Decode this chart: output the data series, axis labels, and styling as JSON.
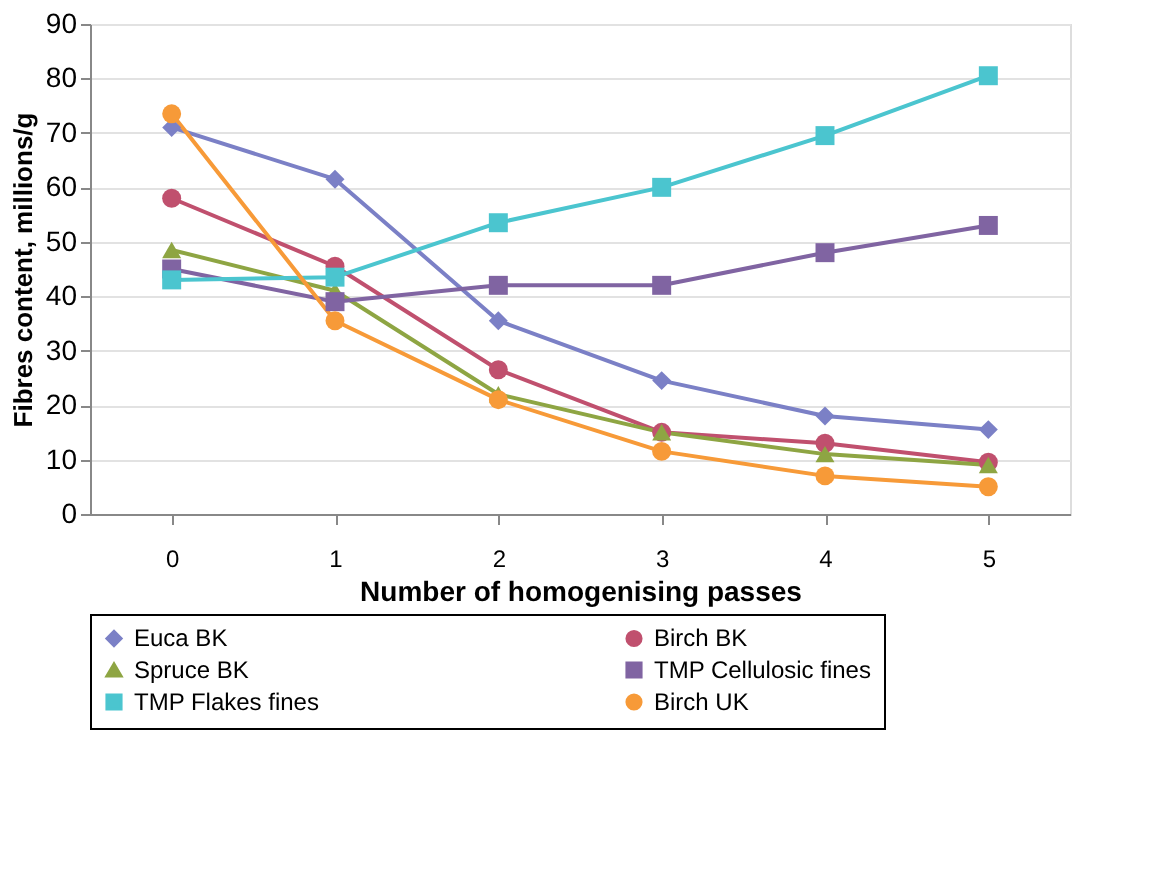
{
  "chart_data": {
    "type": "line",
    "xlabel": "Number of homogenising passes",
    "ylabel": "Fibres content, millions/g",
    "categories": [
      "0",
      "1",
      "2",
      "3",
      "4",
      "5"
    ],
    "ylim": [
      0,
      90
    ],
    "yticks": [
      0,
      10,
      20,
      30,
      40,
      50,
      60,
      70,
      80,
      90
    ],
    "grid": "y",
    "legend": "bottom",
    "series": [
      {
        "name": "Euca BK",
        "color": "#7b80c6",
        "marker": "diamond",
        "values": [
          71,
          61.5,
          35.5,
          24.5,
          18,
          15.5
        ]
      },
      {
        "name": "Birch BK",
        "color": "#c0506e",
        "marker": "circle",
        "values": [
          58,
          45.5,
          26.5,
          15,
          13,
          9.5
        ]
      },
      {
        "name": "Spruce BK",
        "color": "#8ea543",
        "marker": "triangle",
        "values": [
          48.5,
          41,
          22,
          15,
          11,
          9
        ]
      },
      {
        "name": "TMP Cellulosic fines",
        "color": "#8064a2",
        "marker": "square",
        "values": [
          45,
          39,
          42,
          42,
          48,
          53
        ]
      },
      {
        "name": "TMP Flakes fines",
        "color": "#4bc5cf",
        "marker": "square",
        "values": [
          43,
          43.5,
          53.5,
          60,
          69.5,
          80.5
        ]
      },
      {
        "name": "Birch UK",
        "color": "#f79a38",
        "marker": "circle",
        "values": [
          73.5,
          35.5,
          21,
          11.5,
          7,
          5
        ]
      }
    ]
  }
}
